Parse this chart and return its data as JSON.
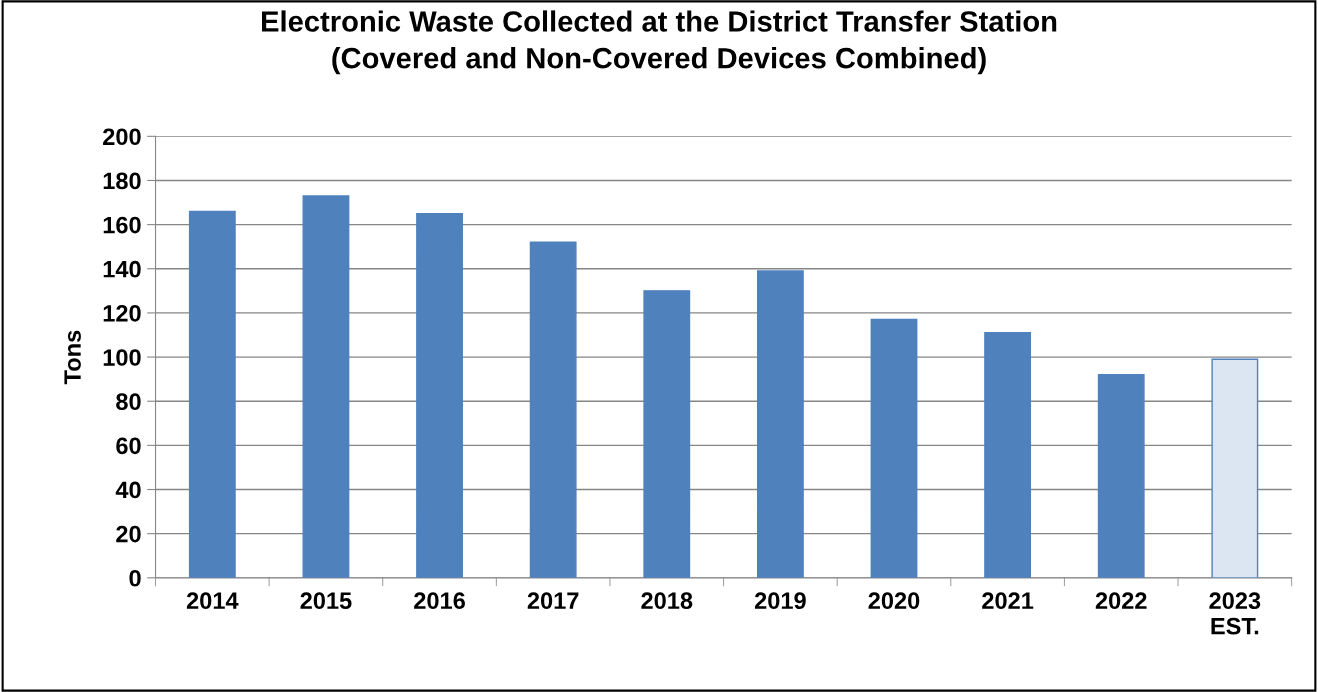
{
  "chart_data": {
    "type": "bar",
    "title": "Electronic Waste Collected at the District Transfer Station\n(Covered and Non-Covered Devices Combined)",
    "ylabel": "Tons",
    "categories": [
      "2014",
      "2015",
      "2016",
      "2017",
      "2018",
      "2019",
      "2020",
      "2021",
      "2022",
      "2023\nEST."
    ],
    "values": [
      166,
      173,
      165,
      152,
      130,
      139,
      117,
      111,
      92,
      99
    ],
    "colors": [
      "#4f81bd",
      "#4f81bd",
      "#4f81bd",
      "#4f81bd",
      "#4f81bd",
      "#4f81bd",
      "#4f81bd",
      "#4f81bd",
      "#4f81bd",
      "#dce6f2"
    ],
    "ylim": [
      0,
      200
    ],
    "yticks": [
      0,
      20,
      40,
      60,
      80,
      100,
      120,
      140,
      160,
      180,
      200
    ],
    "grid": "y",
    "legend": false
  }
}
